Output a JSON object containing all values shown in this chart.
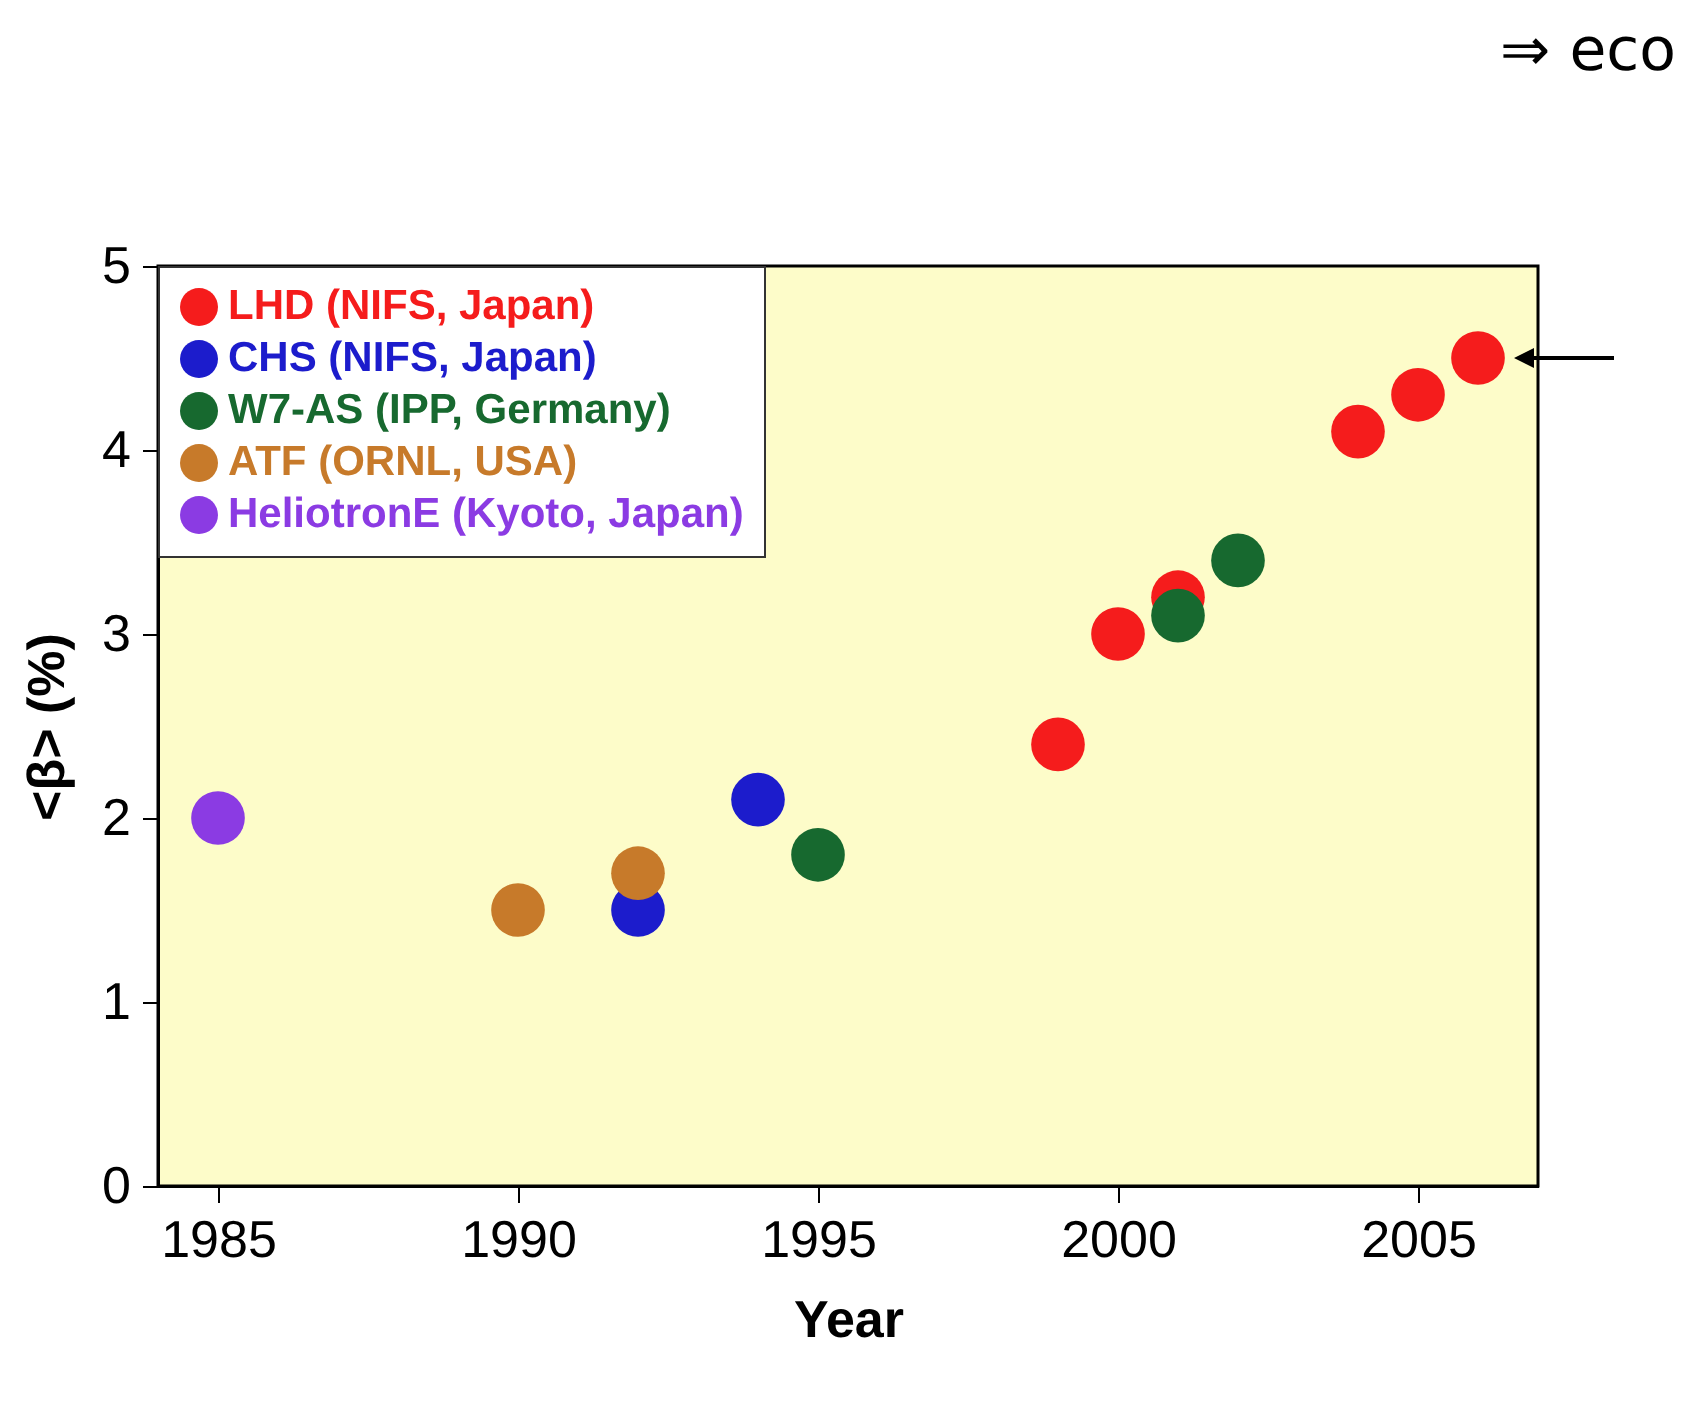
{
  "chart_data": {
    "type": "scatter",
    "xlabel": "Year",
    "ylabel": "<β> (%)",
    "xlim": [
      1984,
      2007
    ],
    "xticks": [
      1985,
      1990,
      1995,
      2000,
      2005
    ],
    "ylim": [
      0,
      5
    ],
    "yticks": [
      0,
      1,
      2,
      3,
      4,
      5
    ],
    "grid": false,
    "legend": "top left",
    "marker": "circle",
    "annotations": [
      "⇒ eco"
    ],
    "series": [
      {
        "name": "LHD (NIFS, Japan)",
        "color": "#f51c1c",
        "x": [
          1999,
          2000,
          2001,
          2004,
          2005,
          2006
        ],
        "values": [
          2.4,
          3.0,
          3.2,
          4.1,
          4.3,
          4.5
        ]
      },
      {
        "name": "CHS (NIFS, Japan)",
        "color": "#1c1ccc",
        "x": [
          1992,
          1994
        ],
        "values": [
          1.5,
          2.1
        ]
      },
      {
        "name": "W7-AS (IPP, Germany)",
        "color": "#17692f",
        "x": [
          1995,
          2001,
          2002
        ],
        "values": [
          1.8,
          3.1,
          3.4
        ]
      },
      {
        "name": "ATF (ORNL, USA)",
        "color": "#c77a2a",
        "x": [
          1990,
          1992
        ],
        "values": [
          1.5,
          1.7
        ]
      },
      {
        "name": "HeliotronE (Kyoto, Japan)",
        "color": "#8b3be3",
        "x": [
          1985
        ],
        "values": [
          2.0
        ]
      }
    ]
  }
}
